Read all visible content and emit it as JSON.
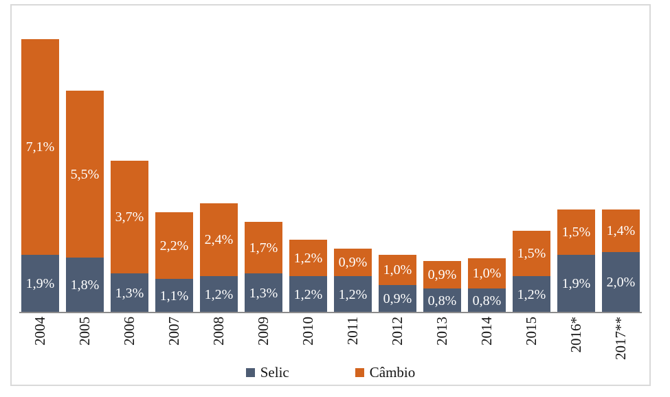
{
  "chart_data": {
    "type": "bar",
    "stacked": true,
    "orientation": "vertical",
    "title": "",
    "xlabel": "",
    "ylabel": "",
    "ylim": [
      0,
      9.0
    ],
    "grid": false,
    "legend_position": "bottom",
    "value_labels_inside_bars": true,
    "decimal_separator": ",",
    "categories": [
      "2004",
      "2005",
      "2006",
      "2007",
      "2008",
      "2009",
      "2010",
      "2011",
      "2012",
      "2013",
      "2014",
      "2015",
      "2016*",
      "2017**"
    ],
    "series": [
      {
        "name": "Selic",
        "color": "#4D5C73",
        "values": [
          1.9,
          1.8,
          1.3,
          1.1,
          1.2,
          1.3,
          1.2,
          1.2,
          0.9,
          0.8,
          0.8,
          1.2,
          1.9,
          2.0
        ],
        "labels": [
          "1,9%",
          "1,8%",
          "1,3%",
          "1,1%",
          "1,2%",
          "1,3%",
          "1,2%",
          "1,2%",
          "0,9%",
          "0,8%",
          "0,8%",
          "1,2%",
          "1,9%",
          "2,0%"
        ]
      },
      {
        "name": "Câmbio",
        "color": "#D2641E",
        "values": [
          7.1,
          5.5,
          3.7,
          2.2,
          2.4,
          1.7,
          1.2,
          0.9,
          1.0,
          0.9,
          1.0,
          1.5,
          1.5,
          1.4
        ],
        "labels": [
          "7,1%",
          "5,5%",
          "3,7%",
          "2,2%",
          "2,4%",
          "1,7%",
          "1,2%",
          "0,9%",
          "1,0%",
          "0,9%",
          "1,0%",
          "1,5%",
          "1,5%",
          "1,4%"
        ]
      }
    ],
    "colors": {
      "value_label": "#FFFFFF",
      "axis_line": "#8C8C8C",
      "frame_border": "#D9D9D9",
      "tick_label": "#141414",
      "background": "#FFFFFF"
    }
  },
  "legend": {
    "items": [
      {
        "label": "Selic",
        "color": "#4D5C73"
      },
      {
        "label": "Câmbio",
        "color": "#D2641E"
      }
    ]
  }
}
